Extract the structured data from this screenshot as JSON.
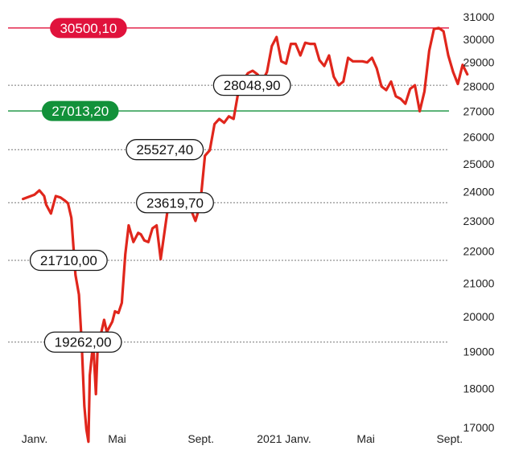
{
  "chart_data": {
    "type": "line",
    "title": "",
    "xlabel": "",
    "ylabel": "",
    "ylim": [
      16800,
      31200
    ],
    "yscale": "log",
    "y_ticks": [
      31000,
      30000,
      29000,
      28000,
      27000,
      26000,
      25000,
      24000,
      23000,
      22000,
      21000,
      20000,
      19000,
      18000,
      17000
    ],
    "x_ticks": [
      {
        "label": "Janv.",
        "date": "2020-01-01"
      },
      {
        "label": "Mai",
        "date": "2020-05-01"
      },
      {
        "label": "Sept.",
        "date": "2020-09-01"
      },
      {
        "label": "2021 Janv.",
        "date": "2021-01-01"
      },
      {
        "label": "Mai",
        "date": "2021-05-01"
      },
      {
        "label": "Sept.",
        "date": "2021-09-01"
      }
    ],
    "line_color": "#e0261c",
    "grid": false,
    "legend": "none",
    "series": [
      {
        "x": [
          "2019-12-15",
          "2020-01-01",
          "2020-01-08",
          "2020-01-15",
          "2020-01-18",
          "2020-01-25",
          "2020-02-01",
          "2020-02-08",
          "2020-02-14",
          "2020-02-19",
          "2020-02-24",
          "2020-03-01",
          "2020-03-06",
          "2020-03-10",
          "2020-03-14",
          "2020-03-17",
          "2020-03-20",
          "2020-03-22",
          "2020-03-27",
          "2020-03-31",
          "2020-04-03",
          "2020-04-08",
          "2020-04-12",
          "2020-04-16",
          "2020-04-20",
          "2020-04-24",
          "2020-04-28",
          "2020-05-03",
          "2020-05-08",
          "2020-05-13",
          "2020-05-18",
          "2020-05-25",
          "2020-06-01",
          "2020-06-05",
          "2020-06-10",
          "2020-06-16",
          "2020-06-22",
          "2020-06-28",
          "2020-07-04",
          "2020-07-10",
          "2020-07-14",
          "2020-07-20",
          "2020-07-27",
          "2020-08-03",
          "2020-08-10",
          "2020-08-17",
          "2020-08-24",
          "2020-08-31",
          "2020-09-07",
          "2020-09-14",
          "2020-09-21",
          "2020-09-28",
          "2020-10-05",
          "2020-10-12",
          "2020-10-19",
          "2020-10-26",
          "2020-11-02",
          "2020-11-09",
          "2020-11-16",
          "2020-11-23",
          "2020-11-30",
          "2020-12-07",
          "2020-12-14",
          "2020-12-21",
          "2020-12-28",
          "2021-01-04",
          "2021-01-11",
          "2021-01-18",
          "2021-01-25",
          "2021-02-01",
          "2021-02-08",
          "2021-02-15",
          "2021-02-22",
          "2021-03-01",
          "2021-03-08",
          "2021-03-15",
          "2021-03-22",
          "2021-03-29",
          "2021-04-05",
          "2021-04-12",
          "2021-04-19",
          "2021-04-26",
          "2021-05-03",
          "2021-05-10",
          "2021-05-17",
          "2021-05-24",
          "2021-05-31",
          "2021-06-07",
          "2021-06-14",
          "2021-06-21",
          "2021-06-28",
          "2021-07-05",
          "2021-07-12",
          "2021-07-19",
          "2021-07-26",
          "2021-08-02",
          "2021-08-09",
          "2021-08-16",
          "2021-08-23",
          "2021-08-30",
          "2021-09-06",
          "2021-09-13",
          "2021-09-20",
          "2021-09-27"
        ],
        "y": [
          23750,
          23900,
          24050,
          23850,
          23550,
          23250,
          23850,
          23800,
          23700,
          23600,
          23100,
          21250,
          20650,
          19300,
          17550,
          16950,
          16650,
          18350,
          19250,
          17850,
          19400,
          19550,
          19900,
          19550,
          19700,
          19850,
          20150,
          20100,
          20400,
          21900,
          22850,
          22300,
          22600,
          22550,
          22350,
          22300,
          22750,
          22850,
          21750,
          22700,
          23350,
          23600,
          23650,
          23650,
          23650,
          23400,
          23000,
          23550,
          25300,
          25500,
          26500,
          26700,
          26550,
          26800,
          26700,
          27800,
          28250,
          28550,
          28650,
          28500,
          28200,
          28600,
          29700,
          30100,
          29050,
          28950,
          29800,
          29800,
          29300,
          29850,
          29800,
          29800,
          29100,
          28850,
          29300,
          28400,
          28050,
          28200,
          29200,
          29050,
          29050,
          29050,
          29000,
          29200,
          28750,
          28000,
          27850,
          28200,
          27600,
          27500,
          27300,
          27900,
          28050,
          27000,
          27800,
          29500,
          30450,
          30500,
          30350,
          29300,
          28600,
          28100,
          28900,
          28500
        ]
      }
    ],
    "reference_lines": [
      {
        "value": 30500.1,
        "label": "30500,10",
        "color": "#e0123c",
        "style": "solid",
        "pill": "filled",
        "pill_date": "2020-03-20"
      },
      {
        "value": 28048.9,
        "label": "28048,90",
        "color": "#555555",
        "style": "dotted",
        "pill": "outline",
        "pill_date": "2020-11-15"
      },
      {
        "value": 27013.2,
        "label": "27013,20",
        "color": "#12913a",
        "style": "solid",
        "pill": "filled",
        "pill_date": "2020-03-08"
      },
      {
        "value": 25527.4,
        "label": "25527,40",
        "color": "#555555",
        "style": "dotted",
        "pill": "outline",
        "pill_date": "2020-07-10"
      },
      {
        "value": 23619.7,
        "label": "23619,70",
        "color": "#555555",
        "style": "dotted",
        "pill": "outline",
        "pill_date": "2020-07-25"
      },
      {
        "value": 21710.0,
        "label": "21710,00",
        "color": "#555555",
        "style": "dotted",
        "pill": "outline",
        "pill_date": "2020-02-20"
      },
      {
        "value": 19262.0,
        "label": "19262,00",
        "color": "#555555",
        "style": "dotted",
        "pill": "outline",
        "pill_date": "2020-03-12"
      }
    ]
  }
}
